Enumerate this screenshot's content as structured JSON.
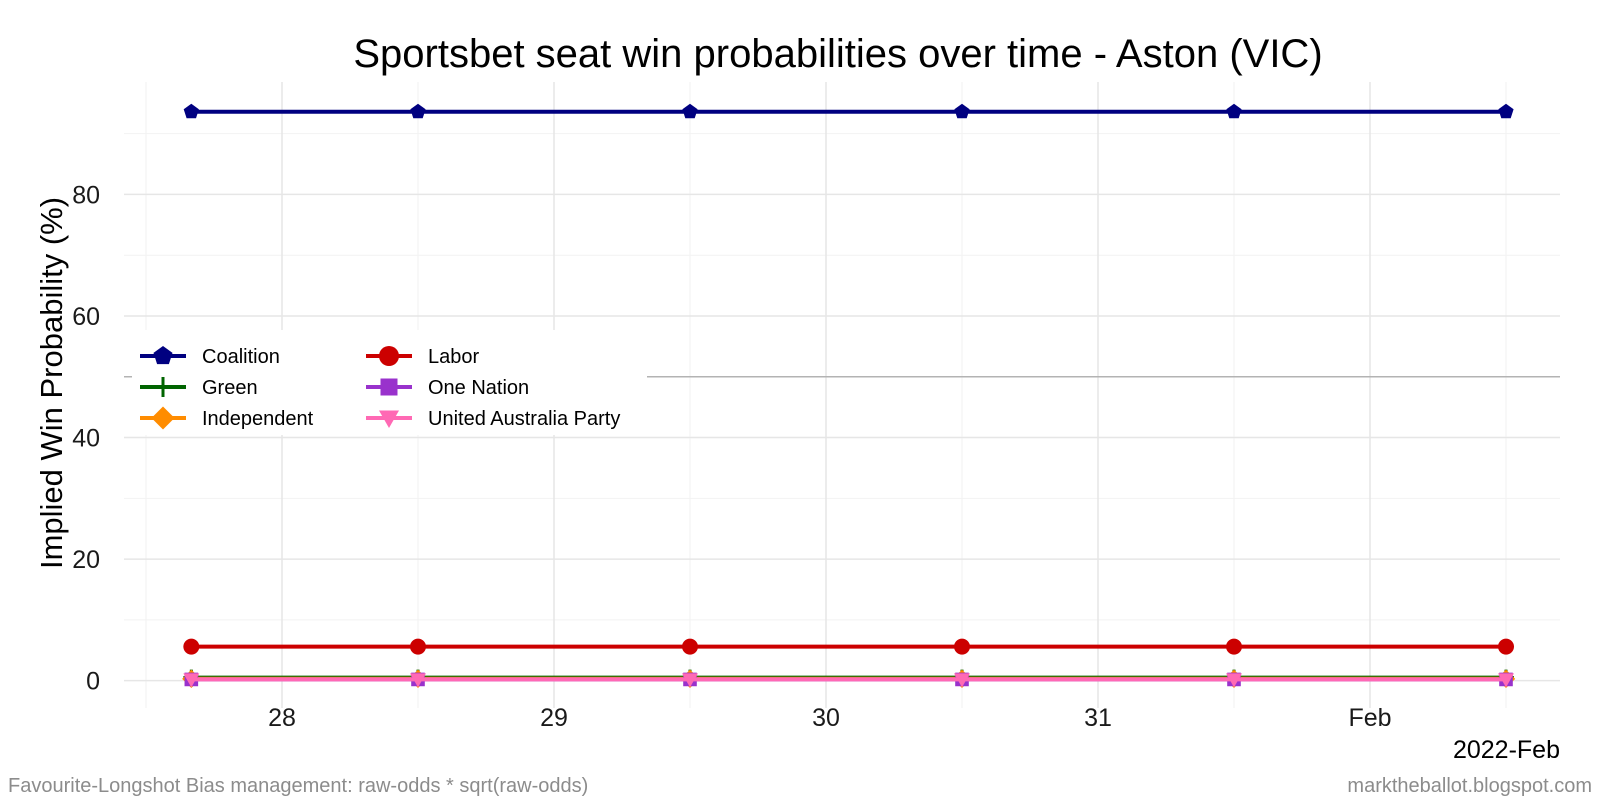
{
  "chart_data": {
    "type": "line",
    "title": "Sportsbet seat win probabilities over time - Aston (VIC)",
    "ylabel": "Implied Win Probability (%)",
    "xlabel": "",
    "x_dates": [
      "2022-01-27T16:00",
      "2022-01-28T12:00",
      "2022-01-29T12:00",
      "2022-01-30T12:00",
      "2022-01-31T12:00",
      "2022-02-01T12:00"
    ],
    "x_ticks": [
      {
        "date": "2022-01-28",
        "label": "28"
      },
      {
        "date": "2022-01-29",
        "label": "29"
      },
      {
        "date": "2022-01-30",
        "label": "30"
      },
      {
        "date": "2022-01-31",
        "label": "31"
      },
      {
        "date": "2022-02-01",
        "label": "Feb"
      }
    ],
    "period_label": "2022-Feb",
    "y_ticks": [
      0,
      20,
      40,
      60,
      80
    ],
    "ylim": [
      -4.5,
      98.5
    ],
    "reference_line": 50,
    "grid": true,
    "legend_position": "left-center",
    "series": [
      {
        "name": "Coalition",
        "color": "#000080",
        "marker": "pentagon",
        "values": [
          93.6,
          93.6,
          93.6,
          93.6,
          93.6,
          93.6
        ]
      },
      {
        "name": "Labor",
        "color": "#cc0000",
        "marker": "circle",
        "values": [
          5.6,
          5.6,
          5.6,
          5.6,
          5.6,
          5.6
        ]
      },
      {
        "name": "Green",
        "color": "#006400",
        "marker": "plus",
        "values": [
          0.5,
          0.5,
          0.5,
          0.5,
          0.5,
          0.5
        ]
      },
      {
        "name": "One Nation",
        "color": "#9932cc",
        "marker": "square",
        "values": [
          0.2,
          0.2,
          0.2,
          0.2,
          0.2,
          0.2
        ]
      },
      {
        "name": "Independent",
        "color": "#ff8c00",
        "marker": "diamond",
        "values": [
          0.3,
          0.3,
          0.3,
          0.3,
          0.3,
          0.3
        ]
      },
      {
        "name": "United Australia Party",
        "color": "#ff69b4",
        "marker": "triangle-down",
        "values": [
          0.2,
          0.2,
          0.2,
          0.2,
          0.2,
          0.2
        ]
      }
    ]
  },
  "caption_left": "Favourite-Longshot Bias management: raw-odds * sqrt(raw-odds)",
  "caption_right": "marktheballot.blogspot.com"
}
